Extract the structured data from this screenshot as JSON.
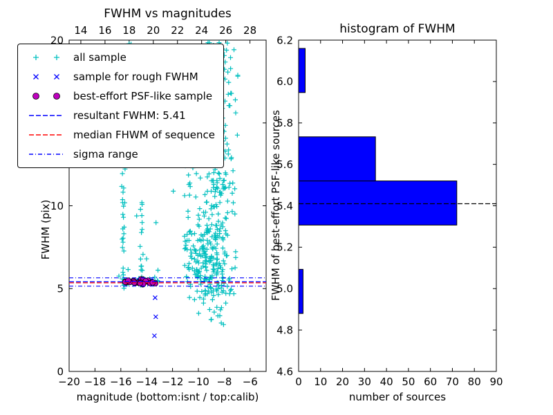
{
  "chart_data": [
    {
      "type": "scatter",
      "title": "FWHM vs magnitudes",
      "xlabel": "magnitude (bottom:isnt / top:calib)",
      "ylabel": "FWHM (pix)",
      "xlim": [
        -20,
        -4.76
      ],
      "x2lim": [
        13.03,
        29.34
      ],
      "ylim": [
        0,
        20
      ],
      "x_ticks_bottom": [
        -20,
        -18,
        -16,
        -14,
        -12,
        -10,
        -8,
        -6
      ],
      "x_ticks_top": [
        14,
        16,
        18,
        20,
        22,
        24,
        26,
        28
      ],
      "y_ticks": [
        0,
        5,
        10,
        15,
        20
      ],
      "series": [
        {
          "name": "all sample",
          "marker": "plus",
          "color": "#00bfbf",
          "clusters": [
            {
              "count": 140,
              "x": {
                "type": "uniform",
                "min": -10.9,
                "max": -6.9
              },
              "y": {
                "type": "uniform",
                "min": 4.2,
                "max": 19.8
              }
            },
            {
              "count": 230,
              "x": {
                "type": "normal",
                "mean": -8.6,
                "sd": 0.45
              },
              "y": {
                "type": "uniform",
                "min": 4.3,
                "max": 19.9
              }
            },
            {
              "count": 60,
              "x": {
                "type": "normal",
                "mean": -9.6,
                "sd": 0.55
              },
              "y": {
                "type": "normal",
                "mean": 6.6,
                "sd": 1.2
              }
            },
            {
              "count": 50,
              "x": {
                "type": "uniform",
                "min": -11.2,
                "max": -9.3
              },
              "y": {
                "type": "uniform",
                "min": 4.3,
                "max": 8.5
              }
            },
            {
              "count": 22,
              "x": {
                "type": "normal",
                "mean": -15.83,
                "sd": 0.05
              },
              "y": {
                "type": "uniform",
                "min": 4.7,
                "max": 12.6
              }
            },
            {
              "count": 14,
              "x": {
                "type": "normal",
                "mean": -14.4,
                "sd": 0.05
              },
              "y": {
                "type": "uniform",
                "min": 4.8,
                "max": 10.6
              }
            },
            {
              "count": 45,
              "x": {
                "type": "uniform",
                "min": -15.9,
                "max": -13.0
              },
              "y": {
                "type": "normal",
                "mean": 5.45,
                "sd": 0.1
              }
            },
            {
              "count": 35,
              "x": {
                "type": "uniform",
                "min": -16.2,
                "max": -11.0
              },
              "y": {
                "type": "uniform",
                "min": 4.5,
                "max": 19.8
              }
            },
            {
              "count": 12,
              "x": {
                "type": "uniform",
                "min": -9.2,
                "max": -7.6
              },
              "y": {
                "type": "uniform",
                "min": 2.6,
                "max": 4.2
              }
            }
          ]
        },
        {
          "name": "sample for rough FWHM",
          "marker": "x",
          "color": "#0000ff",
          "clusters": [
            {
              "count": 20,
              "x": {
                "type": "uniform",
                "min": -15.75,
                "max": -13.15
              },
              "y": {
                "type": "normal",
                "mean": 5.42,
                "sd": 0.09
              }
            }
          ],
          "points": [
            [
              -13.35,
              4.45
            ],
            [
              -13.3,
              3.3
            ],
            [
              -13.4,
              2.15
            ]
          ]
        },
        {
          "name": "best-effort PSF-like sample",
          "marker": "circle",
          "color": "#bf00bf",
          "clusters": [
            {
              "count": 28,
              "x": {
                "type": "uniform",
                "min": -15.7,
                "max": -13.2
              },
              "y": {
                "type": "normal",
                "mean": 5.4,
                "sd": 0.06
              }
            }
          ]
        }
      ],
      "lines": [
        {
          "name": "resultant FWHM: 5.41",
          "y": 5.41,
          "color": "#0000ff",
          "style": "dashed"
        },
        {
          "name": "median FHWM of sequence",
          "y": 5.35,
          "color": "#ff0000",
          "style": "dashed"
        },
        {
          "name": "sigma range",
          "y": [
            5.15,
            5.65
          ],
          "color": "#0000ff",
          "style": "dashdot"
        }
      ]
    },
    {
      "type": "bar",
      "orientation": "horizontal",
      "title": "histogram of FWHM",
      "xlabel": "number of sources",
      "ylabel": "FWHM of best-effort PSF-like sources",
      "xlim": [
        0,
        90
      ],
      "ylim": [
        4.6,
        6.2
      ],
      "x_ticks": [
        0,
        10,
        20,
        30,
        40,
        50,
        60,
        70,
        80,
        90
      ],
      "y_ticks": [
        4.6,
        4.8,
        5.0,
        5.2,
        5.4,
        5.6,
        5.8,
        6.0,
        6.2
      ],
      "bin_edges": [
        4.88,
        5.093,
        5.307,
        5.52,
        5.733,
        5.947,
        6.16
      ],
      "counts": [
        2,
        0,
        72,
        35,
        0,
        3
      ],
      "bar_color": "#0000ff",
      "bar_edge_color": "#000000",
      "marker_line": {
        "y": 5.41,
        "color": "#000000",
        "style": "dashed"
      }
    }
  ]
}
